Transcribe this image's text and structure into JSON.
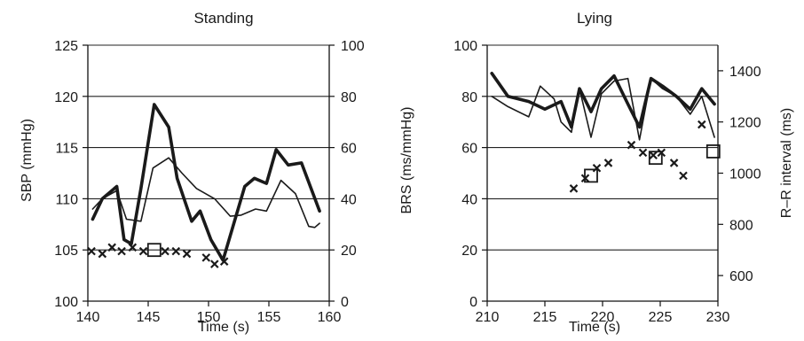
{
  "chart_data": [
    {
      "type": "line",
      "title": "Standing",
      "xlabel": "Time (s)",
      "ylabel": "SBP (mmHg)",
      "y2label": "",
      "xlim": [
        140,
        160
      ],
      "ylim": [
        100,
        125
      ],
      "y2lim": [
        0,
        100
      ],
      "xticks": [
        140,
        145,
        150,
        155,
        160
      ],
      "yticks": [
        100,
        105,
        110,
        115,
        120,
        125
      ],
      "y2ticks": [
        0,
        20,
        40,
        60,
        80,
        100
      ],
      "grid": "horizontal",
      "series": [
        {
          "style": "thick",
          "axis": "left",
          "x": [
            140.4,
            141.2,
            142.4,
            143.0,
            143.6,
            144.4,
            145.5,
            146.7,
            147.4,
            148.6,
            149.3,
            150.2,
            151.2,
            153.0,
            153.8,
            154.8,
            155.6,
            156.6,
            157.7,
            159.2
          ],
          "y": [
            108.0,
            110.0,
            111.2,
            106.0,
            105.6,
            111.0,
            119.2,
            117.0,
            112.0,
            107.8,
            108.8,
            106.0,
            104.0,
            111.2,
            112.0,
            111.5,
            114.8,
            113.3,
            113.5,
            108.8
          ]
        },
        {
          "style": "thin",
          "axis": "left",
          "x": [
            140.4,
            141.2,
            142.4,
            143.2,
            144.4,
            145.4,
            146.7,
            147.8,
            149.0,
            150.5,
            151.8,
            152.7,
            153.9,
            154.8,
            156.0,
            157.2,
            158.3,
            158.8,
            159.2
          ],
          "y": [
            109.0,
            110.0,
            110.8,
            108.0,
            107.8,
            113.0,
            114.0,
            112.5,
            111.0,
            110.0,
            108.3,
            108.4,
            109.0,
            108.8,
            111.8,
            110.5,
            107.3,
            107.2,
            107.6
          ]
        },
        {
          "style": "x-marker",
          "axis": "right",
          "x": [
            140.3,
            141.2,
            142.0,
            142.8,
            143.7,
            144.6,
            146.4,
            147.3,
            148.2,
            149.8,
            150.5,
            151.3
          ],
          "y": [
            19.5,
            18.5,
            21.0,
            19.5,
            21.0,
            19.5,
            19.5,
            19.5,
            18.5,
            17.0,
            14.5,
            15.5
          ]
        },
        {
          "style": "square-marker",
          "axis": "right",
          "x": [
            145.5
          ],
          "y": [
            20.0
          ]
        }
      ]
    },
    {
      "type": "line",
      "title": "Lying",
      "xlabel": "Time (s)",
      "ylabel": "BRS (ms/mmHg)",
      "y2label": "R–R interval (ms)",
      "xlim": [
        210,
        230
      ],
      "ylim": [
        0,
        100
      ],
      "y2lim": [
        500,
        1500
      ],
      "xticks": [
        210,
        215,
        220,
        225,
        230
      ],
      "yticks": [
        0,
        20,
        40,
        60,
        80,
        100
      ],
      "y2ticks": [
        600,
        800,
        1000,
        1200,
        1400
      ],
      "grid": "horizontal",
      "series": [
        {
          "style": "thick",
          "axis": "right",
          "x": [
            210.4,
            211.8,
            213.6,
            215.0,
            216.4,
            217.3,
            218.0,
            219.0,
            219.9,
            221.0,
            222.2,
            223.2,
            224.2,
            225.2,
            226.4,
            227.6,
            228.6,
            229.7
          ],
          "y": [
            1390,
            1300,
            1280,
            1250,
            1280,
            1180,
            1330,
            1240,
            1330,
            1380,
            1270,
            1180,
            1370,
            1340,
            1300,
            1250,
            1330,
            1270
          ]
        },
        {
          "style": "thin",
          "axis": "right",
          "x": [
            210.4,
            211.8,
            213.6,
            214.6,
            215.8,
            216.4,
            217.3,
            218.0,
            219.0,
            219.9,
            221.0,
            222.2,
            223.2,
            224.2,
            225.2,
            226.4,
            227.6,
            228.6,
            229.7
          ],
          "y": [
            1300,
            1260,
            1220,
            1340,
            1290,
            1200,
            1160,
            1330,
            1140,
            1310,
            1360,
            1370,
            1130,
            1370,
            1330,
            1300,
            1230,
            1300,
            1140
          ]
        },
        {
          "style": "x-marker",
          "axis": "left",
          "x": [
            217.5,
            218.5,
            219.5,
            220.5,
            222.5,
            223.5,
            224.4,
            225.1,
            226.2,
            227.0,
            228.6
          ],
          "y": [
            44.0,
            48.0,
            52.0,
            54.0,
            61.0,
            58.0,
            57.0,
            58.0,
            54.0,
            49.0,
            69.0
          ]
        },
        {
          "style": "square-marker",
          "axis": "left",
          "x": [
            219.0,
            224.6,
            229.6
          ],
          "y": [
            49.0,
            56.0,
            58.5
          ]
        }
      ]
    }
  ]
}
